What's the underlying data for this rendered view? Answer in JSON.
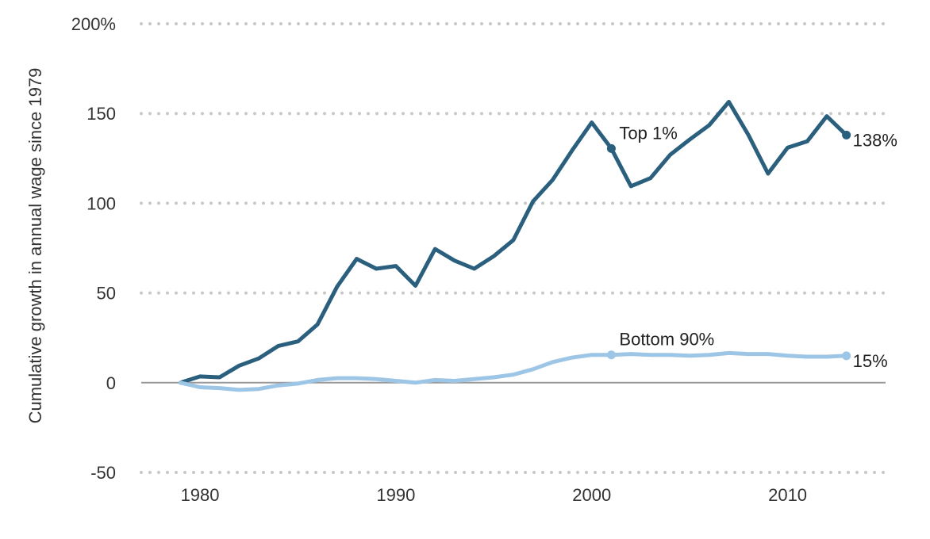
{
  "chart_data": {
    "type": "line",
    "title": "",
    "xlabel": "",
    "ylabel": "Cumulative growth in annual wage since 1979",
    "xlim": [
      1977,
      2015
    ],
    "ylim": [
      -50,
      200
    ],
    "x_ticks": [
      1980,
      1990,
      2000,
      2010
    ],
    "x_tick_labels": [
      "1980",
      "1990",
      "2000",
      "2010"
    ],
    "y_ticks": [
      -50,
      0,
      50,
      100,
      150,
      200
    ],
    "y_tick_labels": [
      "-50",
      "0",
      "50",
      "100",
      "150",
      "200%"
    ],
    "grid": "horizontal dotted",
    "x": [
      1979,
      1980,
      1981,
      1982,
      1983,
      1984,
      1985,
      1986,
      1987,
      1988,
      1989,
      1990,
      1991,
      1992,
      1993,
      1994,
      1995,
      1996,
      1997,
      1998,
      1999,
      2000,
      2001,
      2002,
      2003,
      2004,
      2005,
      2006,
      2007,
      2008,
      2009,
      2010,
      2011,
      2012,
      2013
    ],
    "series": [
      {
        "name": "Top 1%",
        "color": "#2a5f7d",
        "values": [
          0,
          3.5,
          3,
          9.5,
          13.5,
          20.5,
          23,
          32.5,
          53.5,
          69,
          63.5,
          65,
          54,
          74.5,
          68,
          63.5,
          70.5,
          79.5,
          101,
          113,
          129.5,
          145,
          130.5,
          109.5,
          114,
          127,
          135.5,
          143.5,
          156.5,
          138,
          116.5,
          131,
          134.5,
          148.5,
          138
        ],
        "label_x": 2001,
        "end_label": "138%"
      },
      {
        "name": "Bottom 90%",
        "color": "#9cc5e6",
        "values": [
          0,
          -2.5,
          -3,
          -4,
          -3.5,
          -1.5,
          -0.5,
          1.5,
          2.5,
          2.5,
          2,
          1,
          0,
          1.5,
          1,
          2,
          3,
          4.5,
          7.5,
          11.5,
          14,
          15.5,
          15.5,
          16,
          15.5,
          15.5,
          15,
          15.5,
          16.5,
          16,
          16,
          15,
          14.5,
          14.5,
          15
        ],
        "label_x": 2001,
        "end_label": "15%"
      }
    ]
  }
}
